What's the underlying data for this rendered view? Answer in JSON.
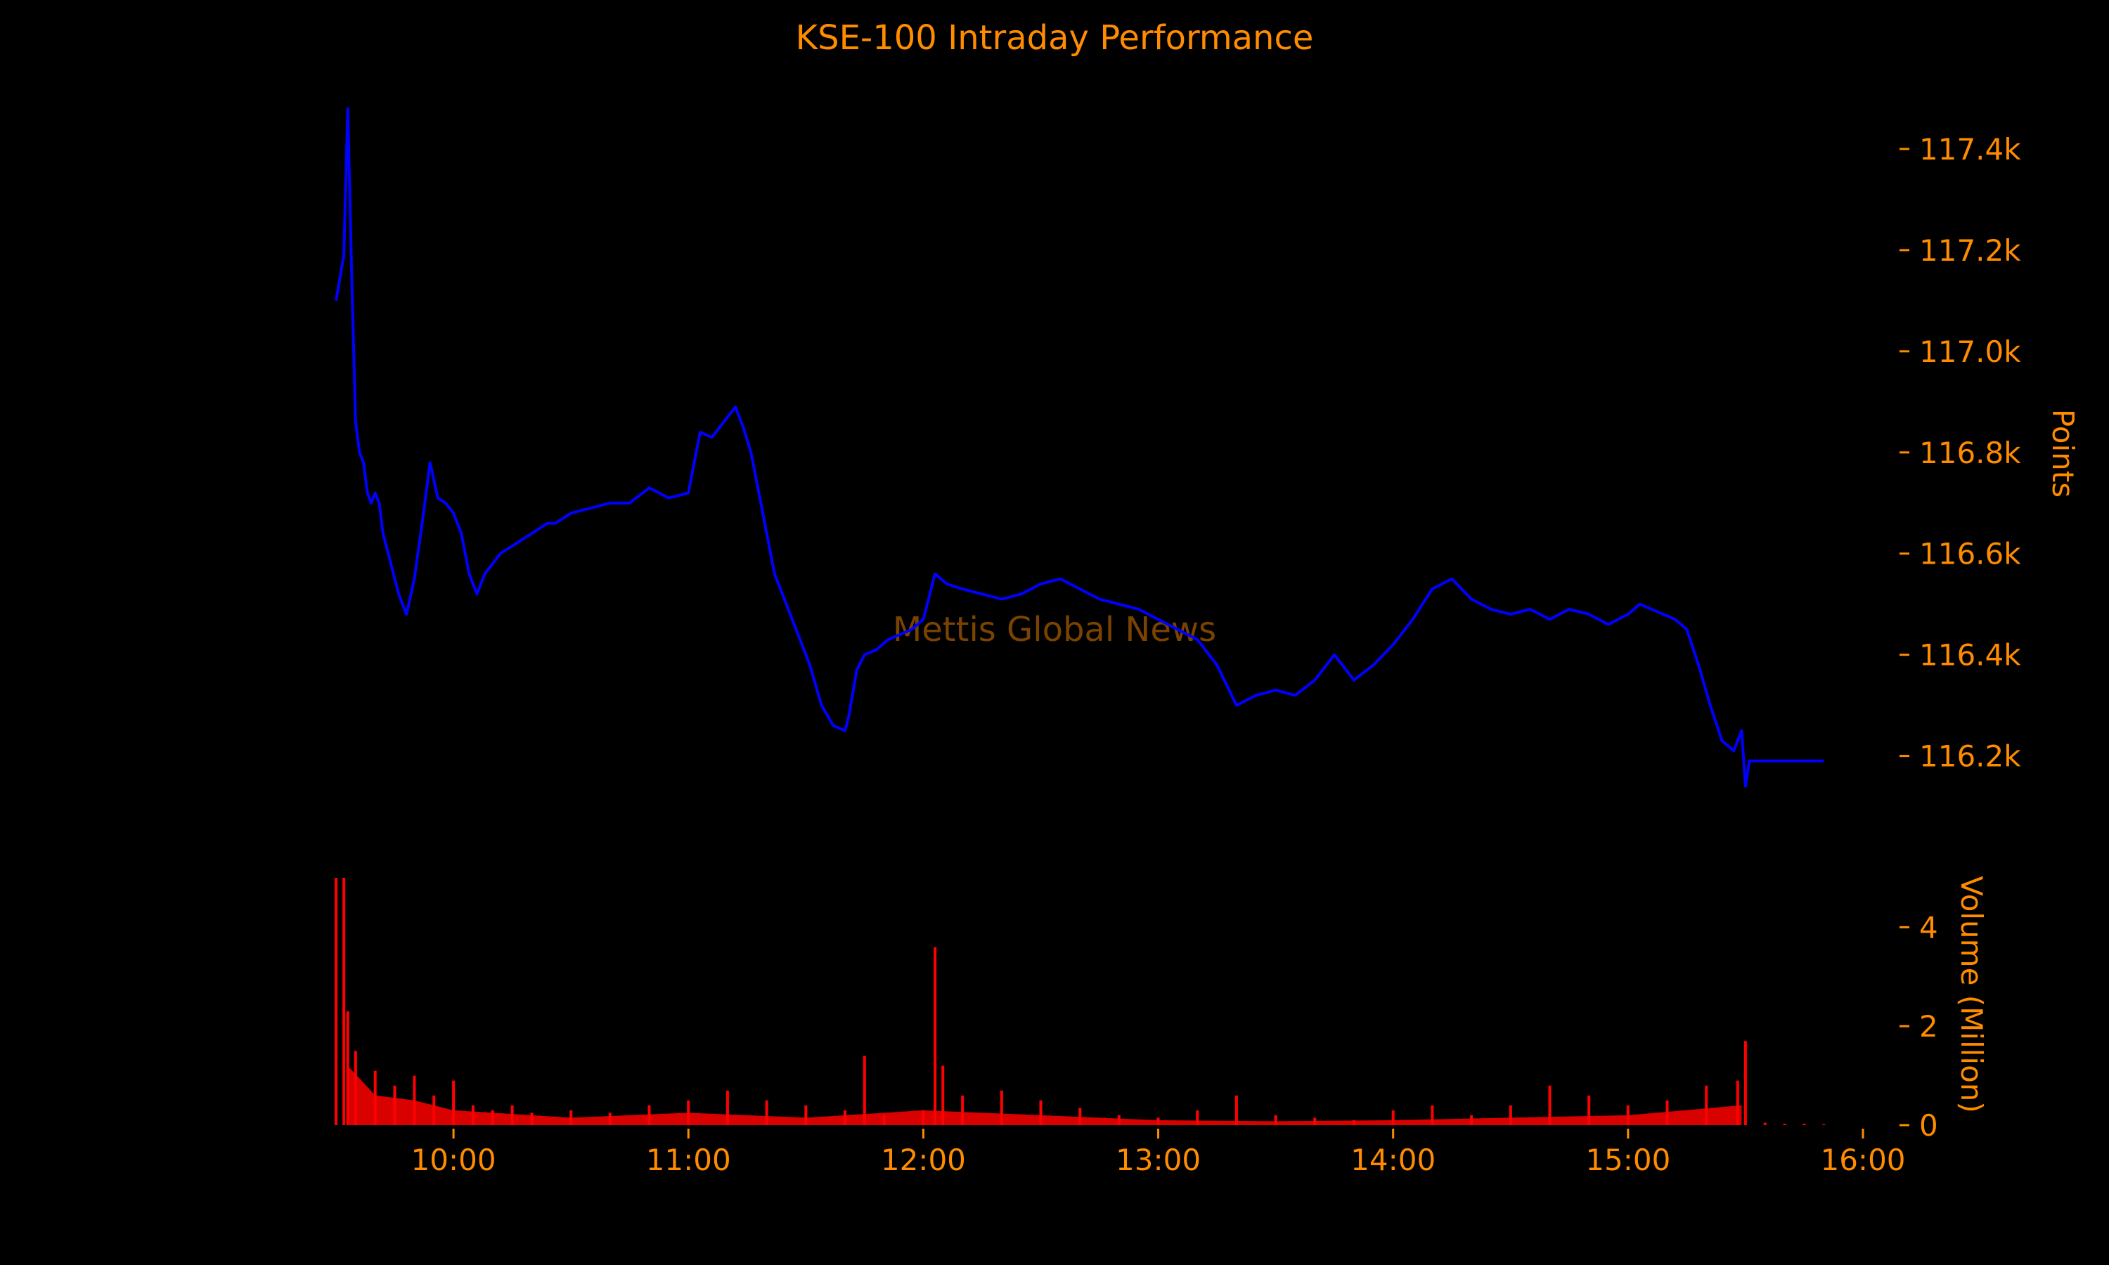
{
  "colors": {
    "background": "#000000",
    "text": "#ff8c00",
    "price_line": "#0000ff",
    "volume_bars": "#ff0000",
    "watermark": "#7a4300"
  },
  "watermark": "Mettis Global News",
  "chart_data": [
    {
      "type": "line",
      "title": "KSE-100 Intraday Performance",
      "xlabel": "",
      "ylabel": "Points",
      "y_axis_side": "right",
      "grid": false,
      "xlim": [
        "09:30",
        "16:00"
      ],
      "ylim": [
        116080,
        117500
      ],
      "yticks": [
        116200,
        116400,
        116600,
        116800,
        117000,
        117200,
        117400
      ],
      "ytick_labels": [
        "116.2k",
        "116.4k",
        "116.6k",
        "116.8k",
        "117.0k",
        "117.2k",
        "117.4k"
      ],
      "series": [
        {
          "x": [
            "09:30",
            "09:32",
            "09:33",
            "09:34",
            "09:35",
            "09:36",
            "09:37",
            "09:38",
            "09:39",
            "09:40",
            "09:41",
            "09:42",
            "09:44",
            "09:46",
            "09:48",
            "09:50",
            "09:52",
            "09:54",
            "09:56",
            "09:58",
            "09:59",
            "10:00",
            "10:02",
            "10:04",
            "10:06",
            "10:08",
            "10:10",
            "10:12",
            "10:14",
            "10:16",
            "10:18",
            "10:20",
            "10:22",
            "10:24",
            "10:26",
            "10:28",
            "10:30",
            "10:35",
            "10:40",
            "10:45",
            "10:50",
            "10:55",
            "11:00",
            "11:03",
            "11:06",
            "11:09",
            "11:12",
            "11:14",
            "11:16",
            "11:18",
            "11:20",
            "11:22",
            "11:25",
            "11:28",
            "11:31",
            "11:34",
            "11:37",
            "11:40",
            "11:41",
            "11:43",
            "11:45",
            "11:48",
            "11:51",
            "11:54",
            "11:57",
            "12:00",
            "12:03",
            "12:06",
            "12:10",
            "12:15",
            "12:20",
            "12:25",
            "12:30",
            "12:35",
            "12:40",
            "12:45",
            "12:50",
            "12:55",
            "13:00",
            "13:05",
            "13:10",
            "13:15",
            "13:20",
            "13:25",
            "13:30",
            "13:35",
            "13:40",
            "13:45",
            "13:50",
            "13:55",
            "14:00",
            "14:05",
            "14:10",
            "14:15",
            "14:20",
            "14:25",
            "14:30",
            "14:35",
            "14:40",
            "14:45",
            "14:50",
            "14:55",
            "15:00",
            "15:03",
            "15:06",
            "15:09",
            "15:12",
            "15:15",
            "15:18",
            "15:21",
            "15:24",
            "15:27",
            "15:29",
            "15:30",
            "15:31",
            "15:35",
            "15:40",
            "15:45",
            "15:50"
          ],
          "values": [
            117100,
            117190,
            117480,
            117150,
            116860,
            116800,
            116780,
            116720,
            116700,
            116720,
            116700,
            116640,
            116580,
            116520,
            116480,
            116550,
            116660,
            116780,
            116710,
            116700,
            116690,
            116680,
            116640,
            116560,
            116520,
            116560,
            116580,
            116600,
            116610,
            116620,
            116630,
            116640,
            116650,
            116660,
            116660,
            116670,
            116680,
            116690,
            116700,
            116700,
            116730,
            116710,
            116720,
            116840,
            116830,
            116860,
            116890,
            116850,
            116800,
            116720,
            116640,
            116560,
            116500,
            116440,
            116380,
            116300,
            116260,
            116250,
            116280,
            116370,
            116400,
            116410,
            116430,
            116440,
            116450,
            116470,
            116560,
            116540,
            116530,
            116520,
            116510,
            116520,
            116540,
            116550,
            116530,
            116510,
            116500,
            116490,
            116470,
            116450,
            116430,
            116380,
            116300,
            116320,
            116330,
            116320,
            116350,
            116400,
            116350,
            116380,
            116420,
            116470,
            116530,
            116550,
            116510,
            116490,
            116480,
            116490,
            116470,
            116490,
            116480,
            116460,
            116480,
            116500,
            116490,
            116480,
            116470,
            116450,
            116380,
            116300,
            116230,
            116210,
            116250,
            116140,
            116190,
            116190,
            116190,
            116190,
            116190
          ]
        }
      ]
    },
    {
      "type": "bar",
      "title": "",
      "xlabel": "",
      "ylabel": "Volume (Million)",
      "y_axis_side": "right",
      "grid": false,
      "xlim": [
        "09:30",
        "16:00"
      ],
      "ylim": [
        0,
        5
      ],
      "yticks": [
        0,
        2,
        4
      ],
      "ytick_labels": [
        "0",
        "2",
        "4"
      ],
      "xticks": [
        "10:00",
        "11:00",
        "12:00",
        "13:00",
        "14:00",
        "15:00",
        "16:00"
      ],
      "x": [
        "09:30",
        "09:32",
        "09:33",
        "09:35",
        "09:40",
        "09:45",
        "09:50",
        "09:55",
        "10:00",
        "10:05",
        "10:10",
        "10:15",
        "10:20",
        "10:30",
        "10:40",
        "10:50",
        "11:00",
        "11:10",
        "11:20",
        "11:30",
        "11:40",
        "11:45",
        "11:50",
        "12:00",
        "12:03",
        "12:05",
        "12:10",
        "12:20",
        "12:30",
        "12:40",
        "12:50",
        "13:00",
        "13:10",
        "13:20",
        "13:30",
        "13:40",
        "13:50",
        "14:00",
        "14:10",
        "14:20",
        "14:30",
        "14:40",
        "14:50",
        "15:00",
        "15:10",
        "15:20",
        "15:28",
        "15:30",
        "15:35",
        "15:40",
        "15:45",
        "15:50"
      ],
      "values": [
        5.0,
        5.0,
        2.3,
        1.5,
        1.1,
        0.8,
        1.0,
        0.6,
        0.9,
        0.4,
        0.3,
        0.4,
        0.25,
        0.3,
        0.25,
        0.4,
        0.5,
        0.7,
        0.5,
        0.4,
        0.3,
        1.4,
        0.2,
        0.3,
        3.6,
        1.2,
        0.6,
        0.7,
        0.5,
        0.35,
        0.2,
        0.15,
        0.3,
        0.6,
        0.2,
        0.15,
        0.1,
        0.3,
        0.4,
        0.2,
        0.4,
        0.8,
        0.6,
        0.4,
        0.5,
        0.8,
        0.9,
        1.7,
        0.05,
        0.03,
        0.03,
        0.02
      ]
    }
  ]
}
